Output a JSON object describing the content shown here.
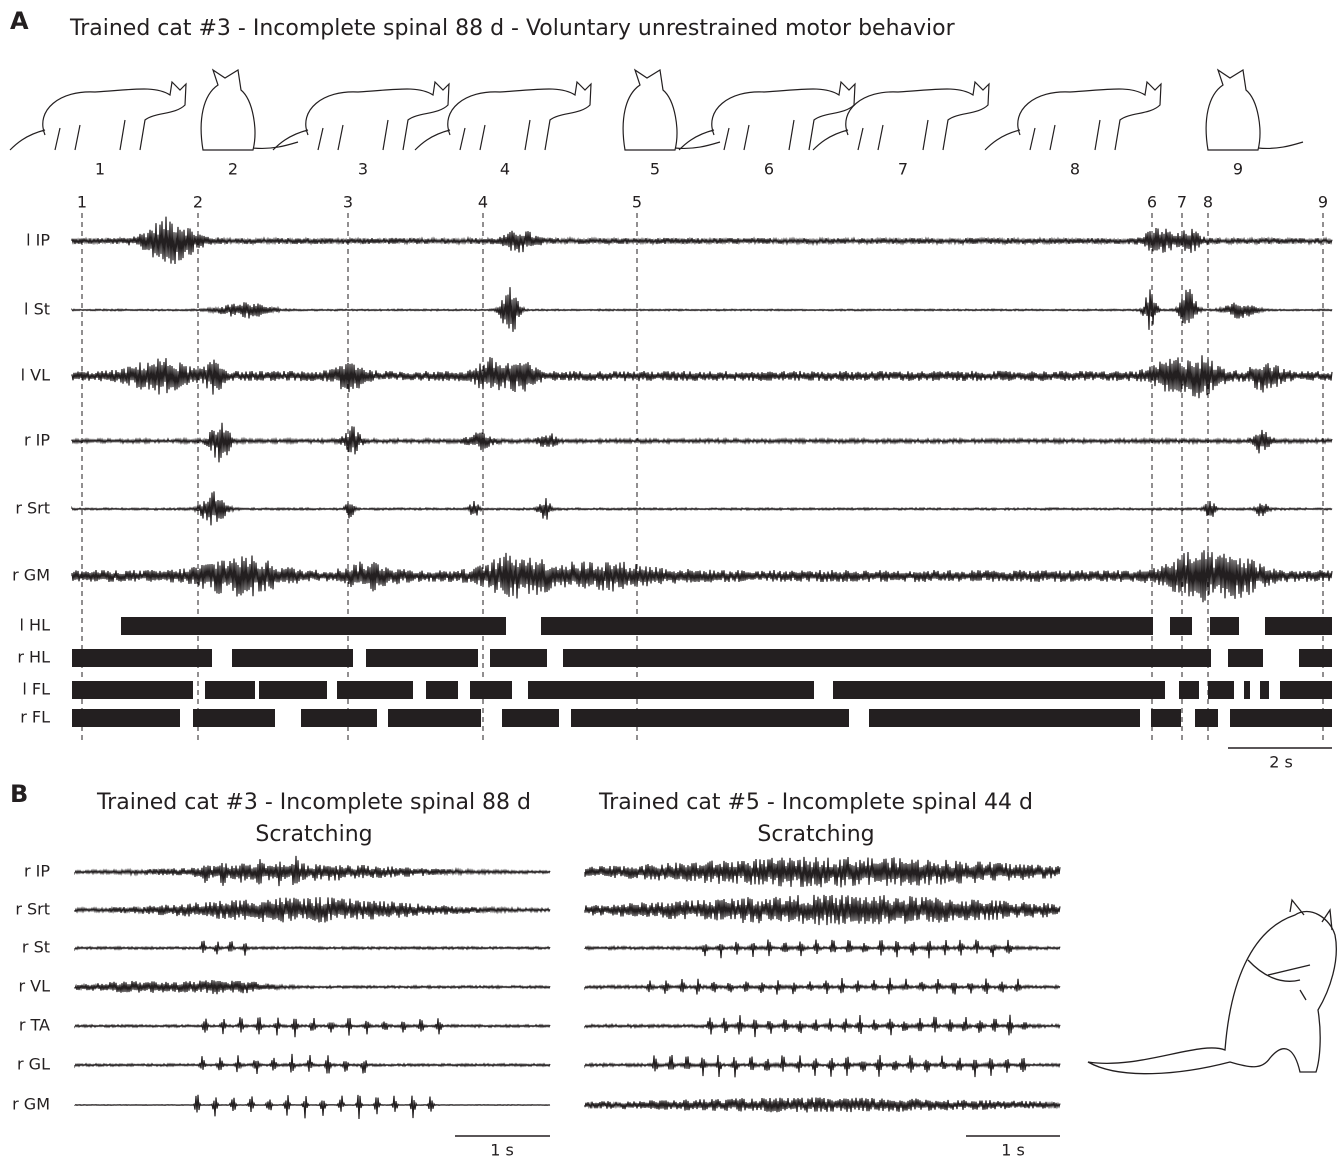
{
  "panel_a": {
    "letter": "A",
    "title": "Trained cat #3 - Incomplete spinal 88 d - Voluntary unrestrained motor behavior",
    "postures": [
      "1",
      "2",
      "3",
      "4",
      "5",
      "6",
      "7",
      "8",
      "9"
    ],
    "event_markers": [
      "1",
      "2",
      "3",
      "4",
      "5",
      "6",
      "7",
      "8",
      "9"
    ],
    "channels": [
      "l IP",
      "l St",
      "l VL",
      "r IP",
      "r Srt",
      "r GM"
    ],
    "limb_phases": [
      "l HL",
      "r HL",
      "l FL",
      "r FL"
    ],
    "scale_bar": "2 s"
  },
  "panel_b": {
    "letter": "B",
    "recordings": [
      {
        "title_line1": "Trained cat #3 - Incomplete spinal 88 d",
        "title_line2": "Scratching",
        "scale_bar": "1 s"
      },
      {
        "title_line1": "Trained cat #5 - Incomplete spinal 44 d",
        "title_line2": "Scratching",
        "scale_bar": "1 s"
      }
    ],
    "channels": [
      "r IP",
      "r Srt",
      "r St",
      "r VL",
      "r TA",
      "r GL",
      "r GM"
    ]
  }
}
